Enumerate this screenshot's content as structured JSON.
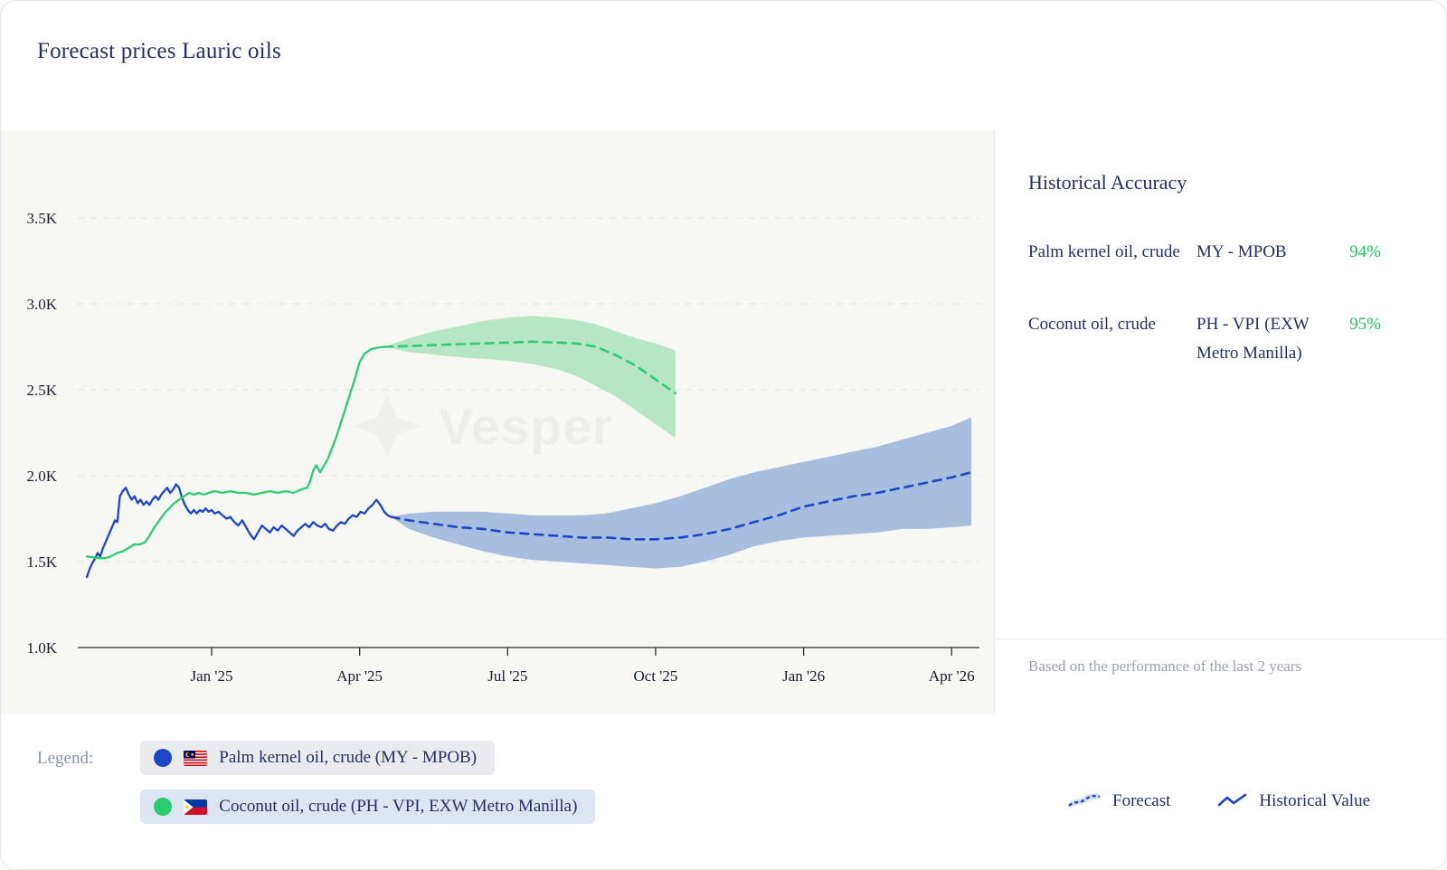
{
  "header": {
    "title": "Forecast prices Lauric oils"
  },
  "colors": {
    "accent_blue": "#1b46c5",
    "series_green": "#2ecc71",
    "positive_green": "#21c45d",
    "navy_text": "#232f66",
    "chart_background": "#f7f7f3"
  },
  "accuracy": {
    "title": "Historical Accuracy",
    "rows": [
      {
        "product": "Palm kernel oil, crude",
        "source": "MY - MPOB",
        "accuracy": "94%"
      },
      {
        "product": "Coconut oil, crude",
        "source": "PH - VPI (EXW Metro Manilla)",
        "accuracy": "95%"
      }
    ],
    "footnote": "Based on the performance of the last 2 years"
  },
  "legend": {
    "label": "Legend:",
    "items": [
      {
        "label": "Palm kernel oil, crude (MY - MPOB)",
        "color": "#1b46c5",
        "flag": "malaysia-flag"
      },
      {
        "label": "Coconut oil, crude (PH - VPI, EXW Metro Manilla)",
        "color": "#2ecc71",
        "flag": "philippines-flag"
      }
    ],
    "line_types": [
      {
        "label": "Forecast",
        "style": "dashed"
      },
      {
        "label": "Historical Value",
        "style": "solid"
      }
    ]
  },
  "chart_data": {
    "type": "line",
    "watermark": "Vesper",
    "unit": "price, thousands (K)",
    "x_unit": "months since Jan 2025",
    "xlim": [
      -2.8,
      15.6
    ],
    "ylim": [
      1.0,
      4.0
    ],
    "grid": "dashed-horizontal",
    "y_ticks": [
      {
        "value": 1.0,
        "label": "1.0K"
      },
      {
        "value": 1.5,
        "label": "1.5K"
      },
      {
        "value": 2.0,
        "label": "2.0K"
      },
      {
        "value": 2.5,
        "label": "2.5K"
      },
      {
        "value": 3.0,
        "label": "3.0K"
      },
      {
        "value": 3.5,
        "label": "3.5K"
      }
    ],
    "x_ticks": [
      {
        "month": 0,
        "label": "Jan '25"
      },
      {
        "month": 3,
        "label": "Apr '25"
      },
      {
        "month": 6,
        "label": "Jul '25"
      },
      {
        "month": 9,
        "label": "Oct '25"
      },
      {
        "month": 12,
        "label": "Jan '26"
      },
      {
        "month": 15,
        "label": "Apr '26"
      }
    ],
    "series": [
      {
        "name": "Palm kernel oil, crude (MY - MPOB)",
        "color": "#1b46c5",
        "band_color": "#a8bedf",
        "historical": [
          [
            -2.53,
            1.41
          ],
          [
            -2.47,
            1.46
          ],
          [
            -2.42,
            1.49
          ],
          [
            -2.36,
            1.52
          ],
          [
            -2.31,
            1.55
          ],
          [
            -2.26,
            1.53
          ],
          [
            -2.2,
            1.58
          ],
          [
            -2.14,
            1.62
          ],
          [
            -2.08,
            1.66
          ],
          [
            -2.02,
            1.7
          ],
          [
            -1.96,
            1.74
          ],
          [
            -1.91,
            1.73
          ],
          [
            -1.86,
            1.88
          ],
          [
            -1.8,
            1.91
          ],
          [
            -1.74,
            1.93
          ],
          [
            -1.68,
            1.89
          ],
          [
            -1.62,
            1.86
          ],
          [
            -1.56,
            1.88
          ],
          [
            -1.5,
            1.84
          ],
          [
            -1.44,
            1.86
          ],
          [
            -1.38,
            1.83
          ],
          [
            -1.32,
            1.85
          ],
          [
            -1.26,
            1.83
          ],
          [
            -1.2,
            1.86
          ],
          [
            -1.14,
            1.88
          ],
          [
            -1.08,
            1.86
          ],
          [
            -1.02,
            1.89
          ],
          [
            -0.96,
            1.91
          ],
          [
            -0.9,
            1.93
          ],
          [
            -0.84,
            1.9
          ],
          [
            -0.78,
            1.92
          ],
          [
            -0.72,
            1.95
          ],
          [
            -0.66,
            1.93
          ],
          [
            -0.6,
            1.87
          ],
          [
            -0.54,
            1.83
          ],
          [
            -0.48,
            1.8
          ],
          [
            -0.42,
            1.78
          ],
          [
            -0.36,
            1.8
          ],
          [
            -0.3,
            1.78
          ],
          [
            -0.24,
            1.8
          ],
          [
            -0.18,
            1.79
          ],
          [
            -0.12,
            1.81
          ],
          [
            -0.06,
            1.79
          ],
          [
            0.0,
            1.8
          ],
          [
            0.06,
            1.78
          ],
          [
            0.14,
            1.79
          ],
          [
            0.22,
            1.77
          ],
          [
            0.3,
            1.75
          ],
          [
            0.38,
            1.76
          ],
          [
            0.46,
            1.73
          ],
          [
            0.54,
            1.71
          ],
          [
            0.62,
            1.74
          ],
          [
            0.7,
            1.7
          ],
          [
            0.78,
            1.66
          ],
          [
            0.86,
            1.63
          ],
          [
            0.94,
            1.67
          ],
          [
            1.02,
            1.71
          ],
          [
            1.1,
            1.69
          ],
          [
            1.18,
            1.67
          ],
          [
            1.26,
            1.7
          ],
          [
            1.34,
            1.68
          ],
          [
            1.42,
            1.71
          ],
          [
            1.5,
            1.69
          ],
          [
            1.58,
            1.67
          ],
          [
            1.66,
            1.65
          ],
          [
            1.74,
            1.68
          ],
          [
            1.82,
            1.7
          ],
          [
            1.9,
            1.72
          ],
          [
            1.98,
            1.7
          ],
          [
            2.06,
            1.73
          ],
          [
            2.14,
            1.71
          ],
          [
            2.22,
            1.7
          ],
          [
            2.3,
            1.72
          ],
          [
            2.38,
            1.69
          ],
          [
            2.46,
            1.68
          ],
          [
            2.54,
            1.71
          ],
          [
            2.62,
            1.73
          ],
          [
            2.7,
            1.72
          ],
          [
            2.78,
            1.75
          ],
          [
            2.86,
            1.77
          ],
          [
            2.94,
            1.76
          ],
          [
            3.02,
            1.79
          ],
          [
            3.1,
            1.78
          ],
          [
            3.18,
            1.81
          ],
          [
            3.26,
            1.83
          ],
          [
            3.34,
            1.86
          ],
          [
            3.42,
            1.83
          ],
          [
            3.5,
            1.79
          ],
          [
            3.57,
            1.77
          ],
          [
            3.64,
            1.76
          ]
        ],
        "forecast": [
          [
            3.64,
            1.76
          ],
          [
            4,
            1.74
          ],
          [
            4.5,
            1.72
          ],
          [
            5,
            1.7
          ],
          [
            5.5,
            1.69
          ],
          [
            6,
            1.67
          ],
          [
            6.5,
            1.66
          ],
          [
            7,
            1.65
          ],
          [
            7.5,
            1.64
          ],
          [
            8,
            1.64
          ],
          [
            8.5,
            1.63
          ],
          [
            9,
            1.63
          ],
          [
            9.5,
            1.64
          ],
          [
            10,
            1.66
          ],
          [
            10.5,
            1.69
          ],
          [
            11,
            1.73
          ],
          [
            11.5,
            1.77
          ],
          [
            12,
            1.82
          ],
          [
            12.5,
            1.85
          ],
          [
            13,
            1.88
          ],
          [
            13.5,
            1.9
          ],
          [
            14,
            1.93
          ],
          [
            14.5,
            1.96
          ],
          [
            15,
            1.99
          ],
          [
            15.4,
            2.02
          ]
        ],
        "band_upper": [
          [
            3.64,
            1.76
          ],
          [
            4,
            1.78
          ],
          [
            4.5,
            1.79
          ],
          [
            5,
            1.79
          ],
          [
            5.5,
            1.79
          ],
          [
            6,
            1.78
          ],
          [
            6.5,
            1.77
          ],
          [
            7,
            1.77
          ],
          [
            7.5,
            1.77
          ],
          [
            8,
            1.78
          ],
          [
            8.5,
            1.81
          ],
          [
            9,
            1.84
          ],
          [
            9.5,
            1.88
          ],
          [
            10,
            1.93
          ],
          [
            10.5,
            1.98
          ],
          [
            11,
            2.02
          ],
          [
            11.5,
            2.05
          ],
          [
            12,
            2.08
          ],
          [
            12.5,
            2.11
          ],
          [
            13,
            2.14
          ],
          [
            13.5,
            2.17
          ],
          [
            14,
            2.21
          ],
          [
            14.5,
            2.25
          ],
          [
            15,
            2.29
          ],
          [
            15.4,
            2.34
          ]
        ],
        "band_lower": [
          [
            3.64,
            1.76
          ],
          [
            4,
            1.69
          ],
          [
            4.5,
            1.64
          ],
          [
            5,
            1.6
          ],
          [
            5.5,
            1.56
          ],
          [
            6,
            1.53
          ],
          [
            6.5,
            1.51
          ],
          [
            7,
            1.5
          ],
          [
            7.5,
            1.49
          ],
          [
            8,
            1.48
          ],
          [
            8.5,
            1.47
          ],
          [
            9,
            1.46
          ],
          [
            9.5,
            1.47
          ],
          [
            10,
            1.5
          ],
          [
            10.5,
            1.54
          ],
          [
            11,
            1.59
          ],
          [
            11.5,
            1.62
          ],
          [
            12,
            1.64
          ],
          [
            12.5,
            1.65
          ],
          [
            13,
            1.66
          ],
          [
            13.5,
            1.67
          ],
          [
            14,
            1.69
          ],
          [
            14.5,
            1.69
          ],
          [
            15,
            1.7
          ],
          [
            15.4,
            1.71
          ]
        ]
      },
      {
        "name": "Coconut oil, crude (PH - VPI, EXW Metro Manilla)",
        "color": "#2ecc71",
        "band_color": "#b6e6c3",
        "historical": [
          [
            -2.53,
            1.53
          ],
          [
            -2.4,
            1.525
          ],
          [
            -2.28,
            1.52
          ],
          [
            -2.16,
            1.52
          ],
          [
            -2.04,
            1.53
          ],
          [
            -1.92,
            1.55
          ],
          [
            -1.8,
            1.56
          ],
          [
            -1.68,
            1.58
          ],
          [
            -1.57,
            1.6
          ],
          [
            -1.46,
            1.6
          ],
          [
            -1.36,
            1.61
          ],
          [
            -1.26,
            1.65
          ],
          [
            -1.16,
            1.7
          ],
          [
            -1.06,
            1.74
          ],
          [
            -0.96,
            1.78
          ],
          [
            -0.86,
            1.81
          ],
          [
            -0.76,
            1.84
          ],
          [
            -0.66,
            1.86
          ],
          [
            -0.56,
            1.88
          ],
          [
            -0.46,
            1.9
          ],
          [
            -0.36,
            1.89
          ],
          [
            -0.26,
            1.9
          ],
          [
            -0.16,
            1.89
          ],
          [
            -0.06,
            1.9
          ],
          [
            0.06,
            1.91
          ],
          [
            0.22,
            1.9
          ],
          [
            0.38,
            1.91
          ],
          [
            0.54,
            1.9
          ],
          [
            0.7,
            1.9
          ],
          [
            0.86,
            1.89
          ],
          [
            1.02,
            1.9
          ],
          [
            1.18,
            1.91
          ],
          [
            1.34,
            1.9
          ],
          [
            1.5,
            1.91
          ],
          [
            1.66,
            1.9
          ],
          [
            1.82,
            1.92
          ],
          [
            1.94,
            1.93
          ],
          [
            2.0,
            1.97
          ],
          [
            2.06,
            2.03
          ],
          [
            2.12,
            2.06
          ],
          [
            2.2,
            2.02
          ],
          [
            2.28,
            2.06
          ],
          [
            2.36,
            2.1
          ],
          [
            2.44,
            2.16
          ],
          [
            2.52,
            2.22
          ],
          [
            2.6,
            2.29
          ],
          [
            2.7,
            2.38
          ],
          [
            2.8,
            2.47
          ],
          [
            2.9,
            2.56
          ],
          [
            3.0,
            2.66
          ],
          [
            3.1,
            2.71
          ],
          [
            3.22,
            2.735
          ],
          [
            3.36,
            2.745
          ],
          [
            3.5,
            2.75
          ]
        ],
        "forecast": [
          [
            3.5,
            2.75
          ],
          [
            4,
            2.755
          ],
          [
            4.5,
            2.76
          ],
          [
            5,
            2.765
          ],
          [
            5.5,
            2.77
          ],
          [
            6,
            2.775
          ],
          [
            6.5,
            2.78
          ],
          [
            7,
            2.775
          ],
          [
            7.4,
            2.77
          ],
          [
            7.8,
            2.75
          ],
          [
            8.2,
            2.7
          ],
          [
            8.6,
            2.64
          ],
          [
            9.0,
            2.56
          ],
          [
            9.4,
            2.48
          ]
        ],
        "band_upper": [
          [
            3.5,
            2.75
          ],
          [
            4,
            2.8
          ],
          [
            4.5,
            2.84
          ],
          [
            5,
            2.87
          ],
          [
            5.5,
            2.9
          ],
          [
            6,
            2.92
          ],
          [
            6.5,
            2.93
          ],
          [
            7,
            2.92
          ],
          [
            7.4,
            2.905
          ],
          [
            7.8,
            2.88
          ],
          [
            8.2,
            2.84
          ],
          [
            8.6,
            2.8
          ],
          [
            9.0,
            2.77
          ],
          [
            9.4,
            2.73
          ]
        ],
        "band_lower": [
          [
            3.5,
            2.75
          ],
          [
            4,
            2.72
          ],
          [
            4.5,
            2.705
          ],
          [
            5,
            2.69
          ],
          [
            5.5,
            2.68
          ],
          [
            6,
            2.67
          ],
          [
            6.5,
            2.65
          ],
          [
            7,
            2.62
          ],
          [
            7.4,
            2.58
          ],
          [
            7.8,
            2.52
          ],
          [
            8.2,
            2.46
          ],
          [
            8.6,
            2.38
          ],
          [
            9.0,
            2.3
          ],
          [
            9.4,
            2.22
          ]
        ]
      }
    ]
  }
}
